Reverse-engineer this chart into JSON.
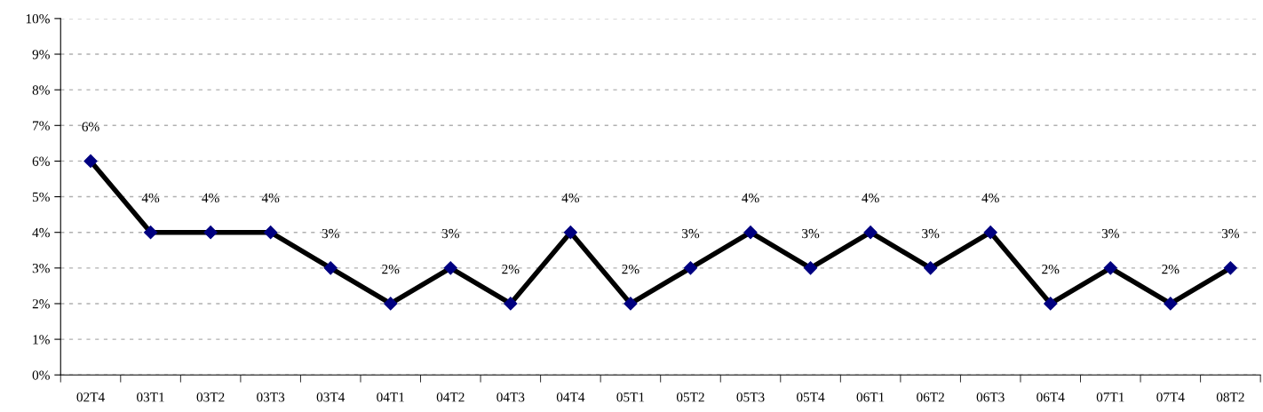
{
  "chart_data": {
    "type": "line",
    "categories": [
      "02T4",
      "03T1",
      "03T2",
      "03T3",
      "03T4",
      "04T1",
      "04T2",
      "04T3",
      "04T4",
      "05T1",
      "05T2",
      "05T3",
      "05T4",
      "06T1",
      "06T2",
      "06T3",
      "06T4",
      "07T1",
      "07T4",
      "08T2"
    ],
    "series": [
      {
        "color": "#000000",
        "values": [
          6,
          4,
          4,
          4,
          3,
          2,
          3,
          2,
          4,
          2,
          3,
          4,
          3,
          4,
          3,
          4,
          2,
          3,
          2,
          3
        ],
        "value_labels": [
          "6%",
          "4%",
          "4%",
          "4%",
          "3%",
          "2%",
          "3%",
          "2%",
          "4%",
          "2%",
          "3%",
          "4%",
          "3%",
          "4%",
          "3%",
          "4%",
          "2%",
          "3%",
          "2%",
          "3%"
        ]
      }
    ],
    "ylim": [
      0,
      10
    ],
    "yticks": [
      {
        "value": 0,
        "label": "0%"
      },
      {
        "value": 1,
        "label": "1%"
      },
      {
        "value": 2,
        "label": "2%"
      },
      {
        "value": 3,
        "label": "3%"
      },
      {
        "value": 4,
        "label": "4%"
      },
      {
        "value": 5,
        "label": "5%"
      },
      {
        "value": 6,
        "label": "6%"
      },
      {
        "value": 7,
        "label": "7%"
      },
      {
        "value": 8,
        "label": "8%"
      },
      {
        "value": 9,
        "label": "9%"
      },
      {
        "value": 10,
        "label": "10%"
      }
    ],
    "grid": "y",
    "marker": "diamond",
    "line_style": "solid",
    "legend": false
  }
}
